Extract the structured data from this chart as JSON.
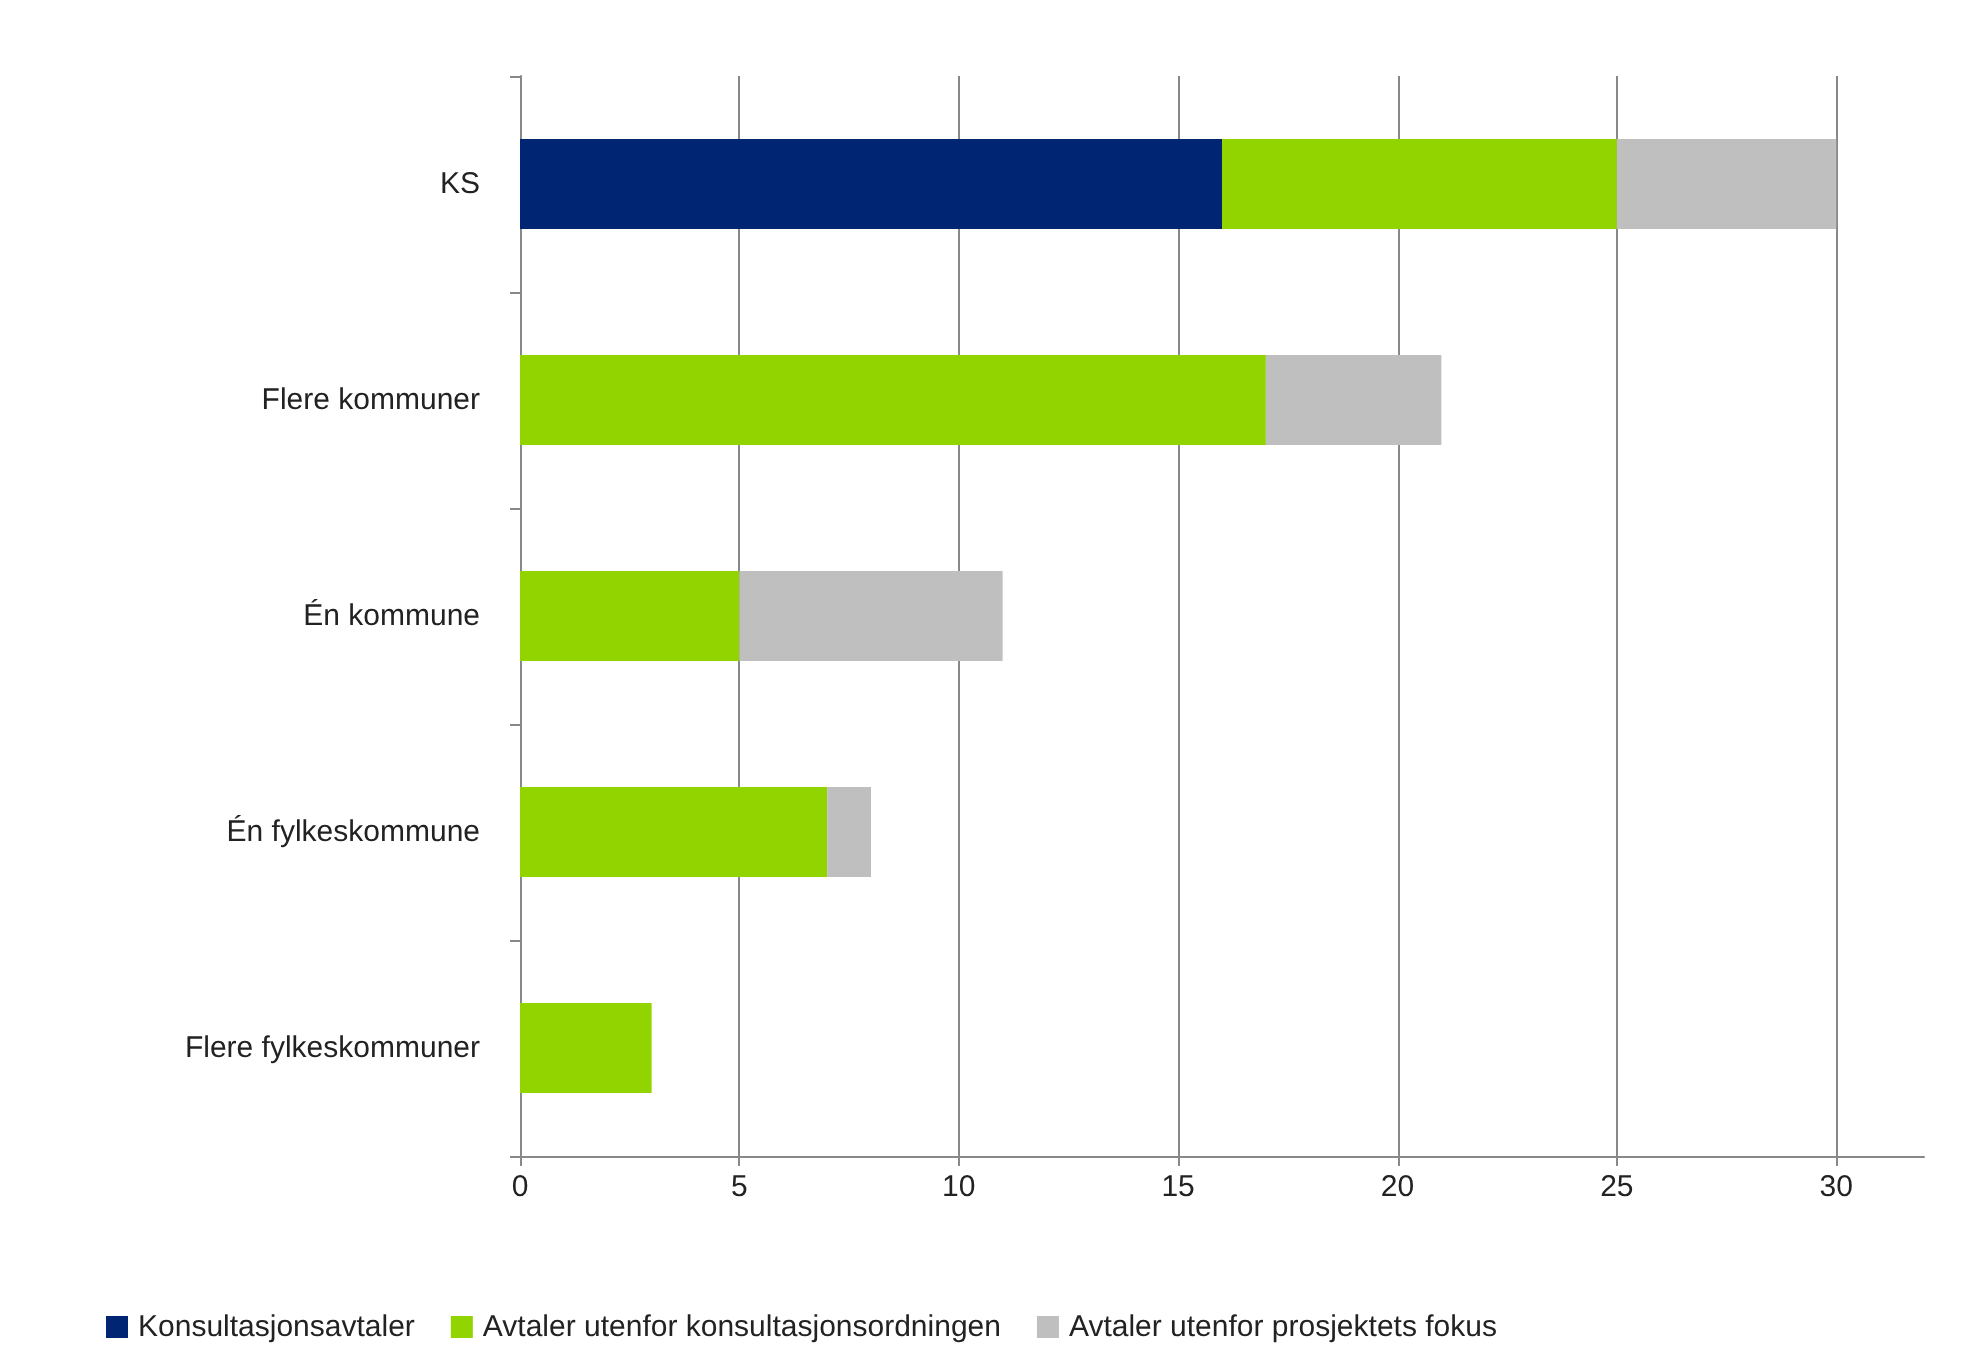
{
  "chart_data": {
    "type": "bar",
    "orientation": "horizontal",
    "stacked": true,
    "categories": [
      "KS",
      "Flere kommuner",
      "Én kommune",
      "Én fylkeskommune",
      "Flere fylkeskommuner"
    ],
    "series": [
      {
        "name": "Konsultasjonsavtaler",
        "color": "#002673",
        "values": [
          16,
          0,
          0,
          0,
          0
        ]
      },
      {
        "name": "Avtaler utenfor konsultasjonsordningen",
        "color": "#92d400",
        "values": [
          9,
          17,
          5,
          7,
          3
        ]
      },
      {
        "name": "Avtaler utenfor prosjektets fokus",
        "color": "#bfbfbf",
        "values": [
          5,
          4,
          6,
          1,
          0
        ]
      }
    ],
    "xlim": [
      0,
      32
    ],
    "xticks": [
      0,
      5,
      10,
      15,
      20,
      25,
      30
    ],
    "grid": "x",
    "legend": "bottom"
  }
}
